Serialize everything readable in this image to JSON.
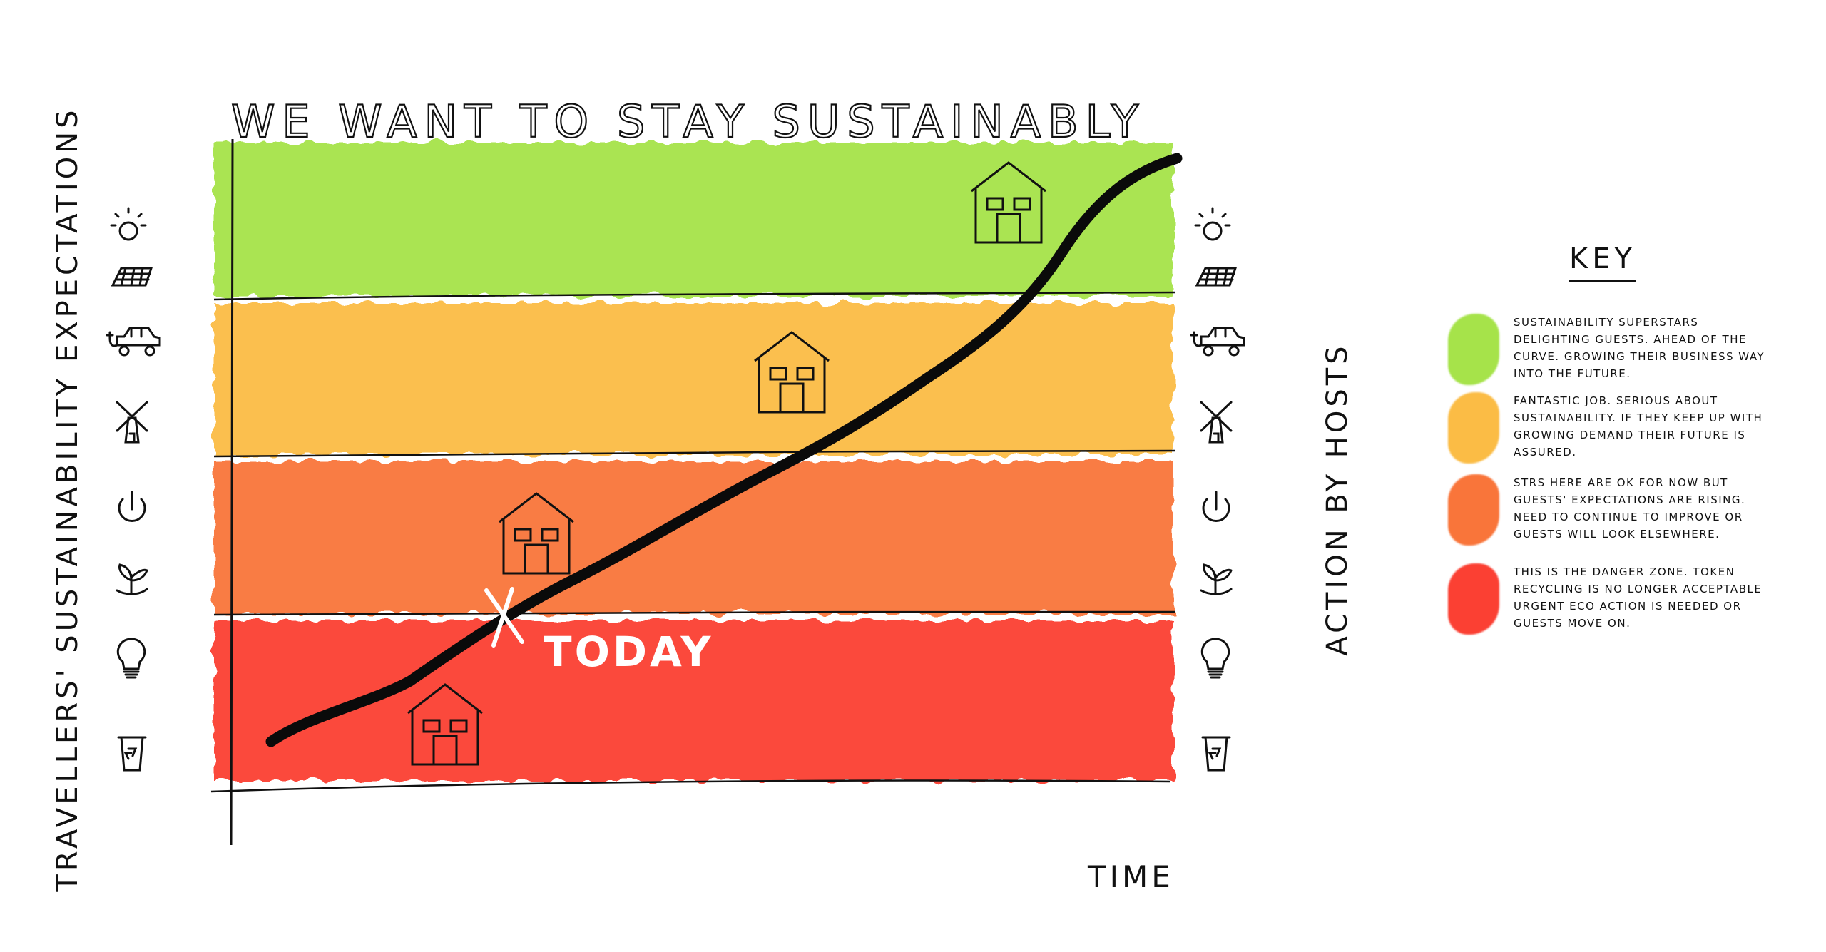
{
  "title": "WE WANT TO STAY SUSTAINABLY",
  "y_axis_label": "TRAVELLERS' SUSTAINABILITY EXPECTATIONS",
  "x_axis_label": "TIME",
  "right_axis_label": "ACTION BY HOSTS",
  "marker_label": "TODAY",
  "colors": {
    "green": "#a6e34a",
    "yellow": "#fbbc45",
    "orange": "#f9753a",
    "red": "#fb4033",
    "curve": "#0a0a0a"
  },
  "bands": [
    {
      "name": "green",
      "color": "#a6e34a"
    },
    {
      "name": "yellow",
      "color": "#fbbc45"
    },
    {
      "name": "orange",
      "color": "#f9753a"
    },
    {
      "name": "red",
      "color": "#fb4033"
    }
  ],
  "icons_left": [
    "sun-icon",
    "solar-panel-icon",
    "electric-car-icon",
    "windmill-icon",
    "power-icon",
    "plant-icon",
    "light-bulb-icon",
    "recycling-bin-icon"
  ],
  "icons_right": [
    "sun-icon",
    "solar-panel-icon",
    "electric-car-icon",
    "windmill-icon",
    "power-icon",
    "plant-icon",
    "light-bulb-icon",
    "recycling-bin-icon"
  ],
  "key": {
    "title": "KEY",
    "items": [
      {
        "color": "#a6e34a",
        "text": "SUSTAINABILITY SUPERSTARS DELIGHTING GUESTS. AHEAD OF THE CURVE. GROWING THEIR BUSINESS WAY INTO THE FUTURE."
      },
      {
        "color": "#fbbc45",
        "text": "FANTASTIC JOB. SERIOUS ABOUT SUSTAINABILITY. IF THEY KEEP UP WITH GROWING DEMAND THEIR FUTURE IS ASSURED."
      },
      {
        "color": "#f9753a",
        "text": "STRS HERE ARE OK FOR NOW BUT GUESTS' EXPECTATIONS ARE RISING. NEED TO CONTINUE TO IMPROVE OR GUESTS WILL LOOK ELSEWHERE."
      },
      {
        "color": "#fb4033",
        "text": "THIS IS THE DANGER ZONE. TOKEN RECYCLING IS NO LONGER ACCEPTABLE URGENT ECO ACTION IS NEEDED OR GUESTS MOVE ON."
      }
    ]
  }
}
